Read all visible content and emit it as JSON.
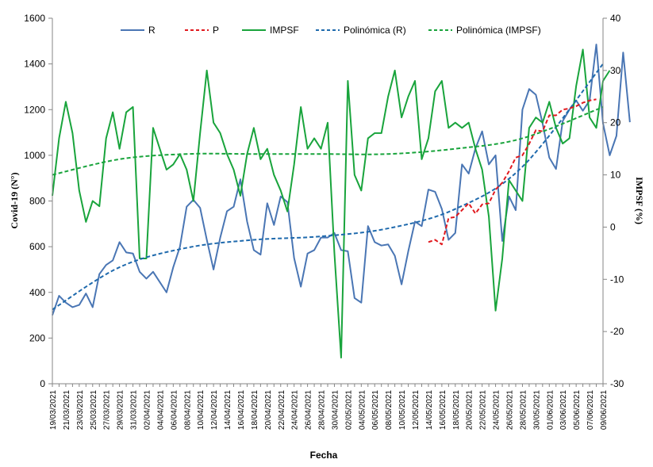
{
  "chart_data": {
    "type": "line",
    "xlabel": "Fecha",
    "ylabel_left": "Covid-19  (N°)",
    "ylabel_right": "IMPSF (%)",
    "ylim_left": [
      0,
      1600
    ],
    "ylim_right": [
      -30,
      40
    ],
    "yticks_left": [
      "0",
      "200",
      "400",
      "600",
      "800",
      "1000",
      "1200",
      "1400",
      "1600"
    ],
    "yticks_right": [
      "-30",
      "-20",
      "-10",
      "0",
      "10",
      "20",
      "30",
      "40"
    ],
    "grid": false,
    "legend_position": "top",
    "x_start_date": "2021-03-19",
    "x_tick_labels": [
      "19/03/2021",
      "21/03/2021",
      "23/03/2021",
      "25/03/2021",
      "27/03/2021",
      "29/03/2021",
      "31/03/2021",
      "02/04/2021",
      "04/04/2021",
      "06/04/2021",
      "08/04/2021",
      "10/04/2021",
      "12/04/2021",
      "14/04/2021",
      "16/04/2021",
      "18/04/2021",
      "20/04/2021",
      "22/04/2021",
      "24/04/2021",
      "26/04/2021",
      "28/04/2021",
      "30/04/2021",
      "02/05/2021",
      "04/05/2021",
      "06/05/2021",
      "08/05/2021",
      "10/05/2021",
      "12/05/2021",
      "14/05/2021",
      "16/05/2021",
      "18/05/2021",
      "20/05/2021",
      "22/05/2021",
      "24/05/2021",
      "26/05/2021",
      "28/05/2021",
      "30/05/2021",
      "01/06/2021",
      "03/06/2021",
      "05/06/2021",
      "07/06/2021",
      "09/06/2021"
    ],
    "series": [
      {
        "name": "R",
        "axis": "left",
        "color": "#4a76b4",
        "style": "solid",
        "x_start": "2021-03-19",
        "values": [
          300,
          385,
          355,
          335,
          345,
          395,
          335,
          480,
          520,
          540,
          620,
          575,
          570,
          490,
          460,
          490,
          445,
          400,
          510,
          600,
          775,
          805,
          770,
          630,
          500,
          640,
          755,
          775,
          895,
          710,
          585,
          565,
          790,
          695,
          820,
          795,
          550,
          425,
          570,
          585,
          640,
          640,
          660,
          585,
          580,
          375,
          355,
          690,
          620,
          605,
          610,
          560,
          435,
          580,
          710,
          690,
          850,
          840,
          765,
          630,
          660,
          960,
          920,
          1030,
          1105,
          960,
          1000,
          625,
          820,
          760,
          1200,
          1290,
          1265,
          1140,
          990,
          940,
          1150,
          1200,
          1240,
          1195,
          1240,
          1485,
          1140,
          1000,
          1085,
          1450,
          1145
        ]
      },
      {
        "name": "P",
        "axis": "left",
        "color": "#e1191e",
        "style": "dashed",
        "x_start": "2021-05-14",
        "values": [
          620,
          630,
          610,
          725,
          730,
          760,
          790,
          745,
          785,
          790,
          850,
          880,
          930,
          990,
          1000,
          1050,
          1110,
          1105,
          1175,
          1175,
          1200,
          1205,
          1215,
          1230,
          1240,
          1245
        ]
      },
      {
        "name": "IMPSF",
        "axis": "right",
        "color": "#19a43c",
        "style": "solid",
        "x_start": "2021-03-19",
        "values": [
          6,
          17,
          24,
          18,
          7,
          1,
          5,
          4,
          17,
          22,
          15,
          22,
          23,
          -6,
          -6,
          19,
          15,
          11,
          12,
          14,
          11,
          5,
          18,
          30,
          20,
          18,
          14,
          11,
          6,
          14,
          19,
          13,
          15,
          10,
          7,
          3,
          12,
          23,
          15,
          17,
          15,
          20,
          -5,
          -25,
          28,
          10,
          7,
          17,
          18,
          18,
          25,
          30,
          21,
          25,
          28,
          13,
          17,
          26,
          28,
          19,
          20,
          19,
          20,
          15,
          11,
          2,
          -16,
          -6,
          9,
          7,
          5,
          19,
          21,
          20,
          24,
          19,
          16,
          17,
          27,
          34,
          21,
          19,
          28,
          30
        ]
      },
      {
        "name": "Polinómica (R)",
        "axis": "left",
        "color": "#1f6aad",
        "style": "dashed",
        "trendline_of": "R",
        "x": [
          "2021-03-19",
          "2021-03-29",
          "2021-04-08",
          "2021-04-18",
          "2021-04-28",
          "2021-05-08",
          "2021-05-18",
          "2021-05-28",
          "2021-06-09"
        ],
        "values": [
          325,
          510,
          595,
          630,
          645,
          680,
          765,
          950,
          1400
        ]
      },
      {
        "name": "Polinómica (IMPSF)",
        "axis": "right",
        "color": "#19a43c",
        "style": "dashed",
        "trendline_of": "IMPSF",
        "x": [
          "2021-03-19",
          "2021-03-29",
          "2021-04-08",
          "2021-04-18",
          "2021-04-28",
          "2021-05-08",
          "2021-05-18",
          "2021-05-28",
          "2021-06-09"
        ],
        "values": [
          10,
          13,
          14,
          14,
          14,
          14,
          15,
          17,
          23
        ]
      }
    ]
  }
}
